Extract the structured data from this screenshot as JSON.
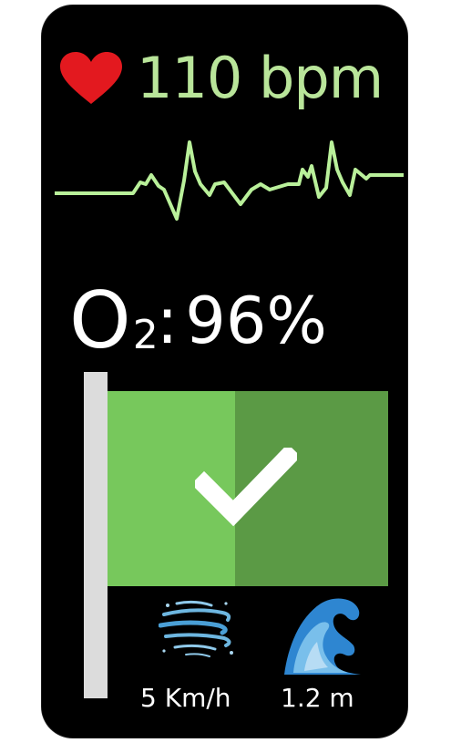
{
  "heart_rate": {
    "value_text": "110 bpm",
    "icon": "heart-icon",
    "color": "#b9e59a",
    "icon_color": "#e3191f"
  },
  "ecg": {
    "icon": "ecg-waveform",
    "color": "#b9f09a"
  },
  "oxygen": {
    "symbol": "O",
    "subscript": "2",
    "separator": ":",
    "value_text": "96%"
  },
  "status_flag": {
    "icon": "check-icon",
    "state": "ok",
    "colors": {
      "light": "#77c85c",
      "dark": "#5b9a45",
      "pole": "#dcdcdc"
    }
  },
  "wind": {
    "icon": "wind-icon",
    "value_text": "5 Km/h"
  },
  "waves": {
    "icon": "wave-icon",
    "value_text": "1.2 m"
  }
}
